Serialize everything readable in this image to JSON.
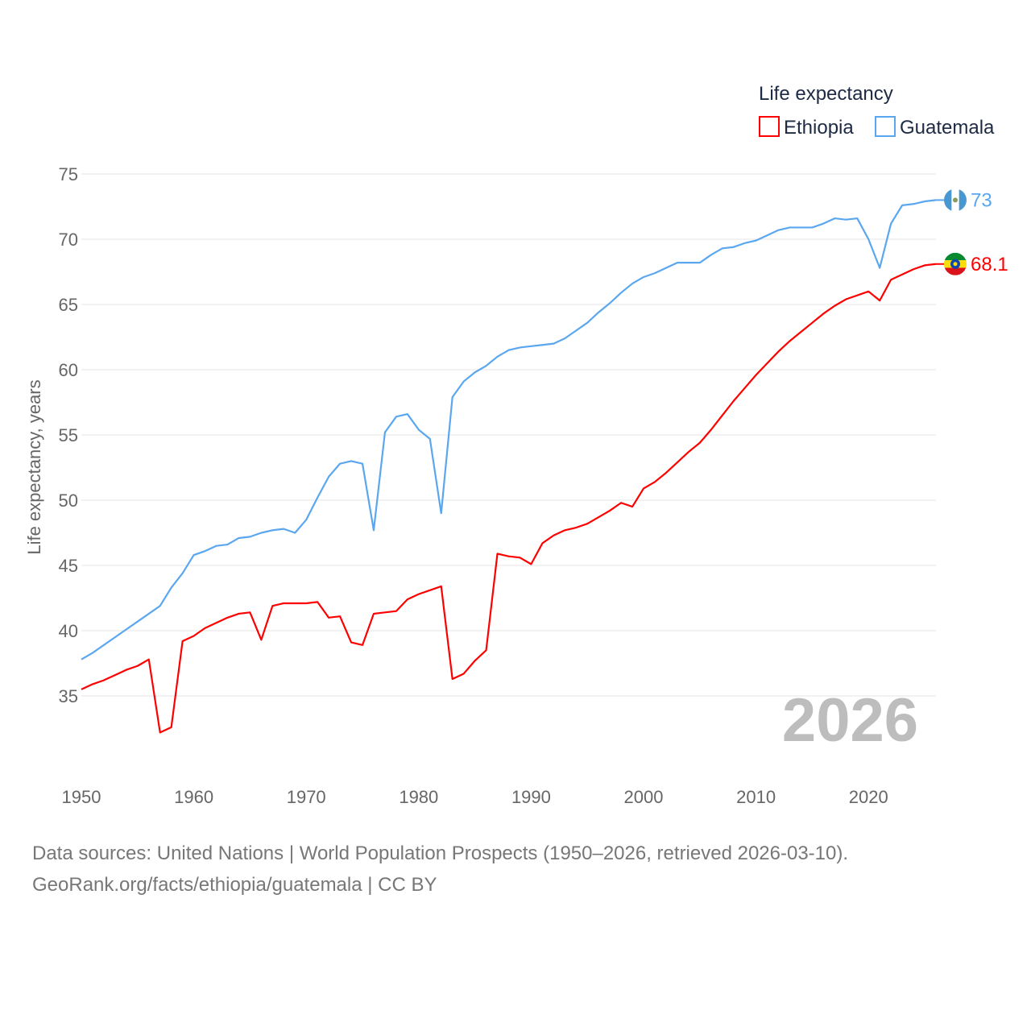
{
  "chart_data": {
    "type": "line",
    "title": "",
    "xlabel": "",
    "ylabel": "Life expectancy, years",
    "xlim": [
      1950,
      2026
    ],
    "ylim": [
      30,
      75
    ],
    "yticks": [
      35,
      40,
      45,
      50,
      55,
      60,
      65,
      70,
      75
    ],
    "xticks": [
      1950,
      1960,
      1970,
      1980,
      1990,
      2000,
      2010,
      2020
    ],
    "grid": true,
    "legend_title": "Life expectancy",
    "legend_placement": "top-right",
    "year_label": "2026",
    "x": [
      1950,
      1951,
      1952,
      1953,
      1954,
      1955,
      1956,
      1957,
      1958,
      1959,
      1960,
      1961,
      1962,
      1963,
      1964,
      1965,
      1966,
      1967,
      1968,
      1969,
      1970,
      1971,
      1972,
      1973,
      1974,
      1975,
      1976,
      1977,
      1978,
      1979,
      1980,
      1981,
      1982,
      1983,
      1984,
      1985,
      1986,
      1987,
      1988,
      1989,
      1990,
      1991,
      1992,
      1993,
      1994,
      1995,
      1996,
      1997,
      1998,
      1999,
      2000,
      2001,
      2002,
      2003,
      2004,
      2005,
      2006,
      2007,
      2008,
      2009,
      2010,
      2011,
      2012,
      2013,
      2014,
      2015,
      2016,
      2017,
      2018,
      2019,
      2020,
      2021,
      2022,
      2023,
      2024,
      2025,
      2026
    ],
    "series": [
      {
        "name": "Ethiopia",
        "color": "#ff0000",
        "end_label": "68.1",
        "values": [
          35.5,
          35.9,
          36.2,
          36.6,
          37.0,
          37.3,
          37.8,
          32.2,
          32.6,
          39.2,
          39.6,
          40.2,
          40.6,
          41.0,
          41.3,
          41.4,
          39.3,
          41.9,
          42.1,
          42.1,
          42.1,
          42.2,
          41.0,
          41.1,
          39.1,
          38.9,
          41.3,
          41.4,
          41.5,
          42.4,
          42.8,
          43.1,
          43.4,
          36.3,
          36.7,
          37.7,
          38.5,
          45.9,
          45.7,
          45.6,
          45.1,
          46.7,
          47.3,
          47.7,
          47.9,
          48.2,
          48.7,
          49.2,
          49.8,
          49.5,
          50.9,
          51.4,
          52.1,
          52.9,
          53.7,
          54.4,
          55.4,
          56.5,
          57.6,
          58.6,
          59.6,
          60.5,
          61.4,
          62.2,
          62.9,
          63.6,
          64.3,
          64.9,
          65.4,
          65.7,
          66.0,
          65.3,
          66.9,
          67.3,
          67.7,
          68.0,
          68.1
        ]
      },
      {
        "name": "Guatemala",
        "color": "#5aa7f0",
        "end_label": "73",
        "values": [
          37.8,
          38.3,
          38.9,
          39.5,
          40.1,
          40.7,
          41.3,
          41.9,
          43.3,
          44.4,
          45.8,
          46.1,
          46.5,
          46.6,
          47.1,
          47.2,
          47.5,
          47.7,
          47.8,
          47.5,
          48.5,
          50.2,
          51.8,
          52.8,
          53.0,
          52.8,
          47.7,
          55.2,
          56.4,
          56.6,
          55.4,
          54.7,
          49.0,
          57.9,
          59.1,
          59.8,
          60.3,
          61.0,
          61.5,
          61.7,
          61.8,
          61.9,
          62.0,
          62.4,
          63.0,
          63.6,
          64.4,
          65.1,
          65.9,
          66.6,
          67.1,
          67.4,
          67.8,
          68.2,
          68.2,
          68.2,
          68.8,
          69.3,
          69.4,
          69.7,
          69.9,
          70.3,
          70.7,
          70.9,
          70.9,
          70.9,
          71.2,
          71.6,
          71.5,
          71.6,
          70.0,
          67.8,
          71.2,
          72.6,
          72.7,
          72.9,
          73.0
        ]
      }
    ]
  },
  "footer": {
    "line1": "Data sources: United Nations | World Population Prospects (1950–2026, retrieved 2026-03-10).",
    "line2": "GeoRank.org/facts/ethiopia/guatemala | CC BY"
  }
}
